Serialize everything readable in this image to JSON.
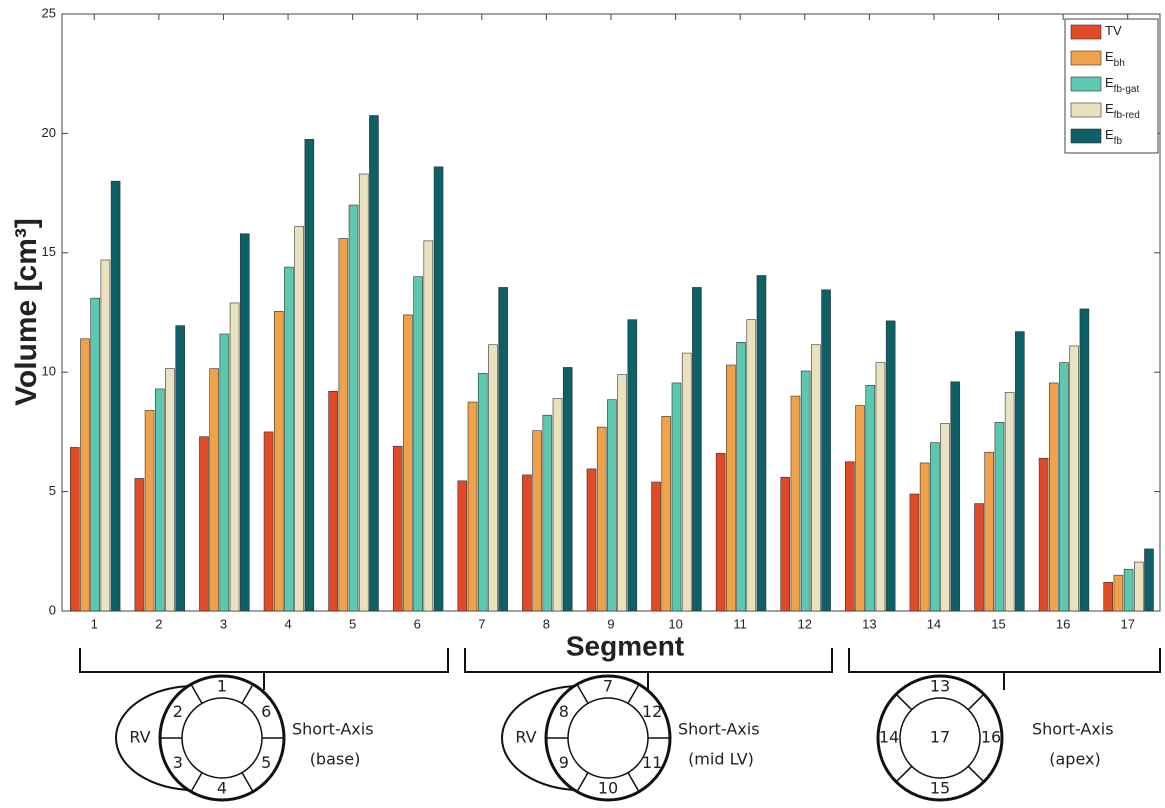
{
  "chart_data": {
    "type": "bar",
    "y_label": "Volume [cm³]",
    "x_label": "Segment",
    "categories": [
      "1",
      "2",
      "3",
      "4",
      "5",
      "6",
      "7",
      "8",
      "9",
      "10",
      "11",
      "12",
      "13",
      "14",
      "15",
      "16",
      "17"
    ],
    "series": [
      {
        "name": "TV",
        "color": "#e04a26",
        "values": [
          6.85,
          5.55,
          7.3,
          7.5,
          9.2,
          6.9,
          5.45,
          5.7,
          5.95,
          5.4,
          6.6,
          5.6,
          6.25,
          4.9,
          4.5,
          6.4,
          1.2
        ]
      },
      {
        "name": "E",
        "subscript": "bh",
        "color": "#f0a24a",
        "values": [
          11.4,
          8.4,
          10.15,
          12.55,
          15.6,
          12.4,
          8.75,
          7.55,
          7.7,
          8.15,
          10.3,
          9.0,
          8.6,
          6.2,
          6.65,
          9.55,
          1.5
        ]
      },
      {
        "name": "E",
        "subscript": "fb-gat",
        "color": "#5cc8b0",
        "values": [
          13.1,
          9.3,
          11.6,
          14.4,
          17.0,
          14.0,
          9.95,
          8.2,
          8.85,
          9.55,
          11.25,
          10.05,
          9.45,
          7.05,
          7.9,
          10.4,
          1.75
        ]
      },
      {
        "name": "E",
        "subscript": "fb-red",
        "color": "#e8e2bf",
        "values": [
          14.7,
          10.15,
          12.9,
          16.1,
          18.3,
          15.5,
          11.15,
          8.9,
          9.9,
          10.8,
          12.2,
          11.15,
          10.4,
          7.85,
          9.15,
          11.1,
          2.05
        ]
      },
      {
        "name": "E",
        "subscript": "fb",
        "color": "#0d6066",
        "values": [
          18.0,
          11.95,
          15.8,
          19.75,
          20.75,
          18.6,
          13.55,
          10.2,
          12.2,
          13.55,
          14.05,
          13.45,
          12.15,
          9.6,
          11.7,
          12.65,
          2.6
        ]
      }
    ],
    "ylim": [
      0,
      25
    ],
    "yticks": [
      0,
      5,
      10,
      15,
      20,
      25
    ],
    "legend": "upper-right"
  },
  "diagrams": [
    {
      "rv": "RV",
      "label": "Short-Axis",
      "sublabel": "(base)",
      "segments": [
        "1",
        "6",
        "5",
        "4",
        "3",
        "2"
      ]
    },
    {
      "rv": "RV",
      "label": "Short-Axis",
      "sublabel": "(mid LV)",
      "segments": [
        "7",
        "12",
        "11",
        "10",
        "9",
        "8"
      ]
    },
    {
      "label": "Short-Axis",
      "sublabel": "(apex)",
      "segments": [
        "13",
        "16",
        "15",
        "14"
      ],
      "center": "17"
    }
  ]
}
